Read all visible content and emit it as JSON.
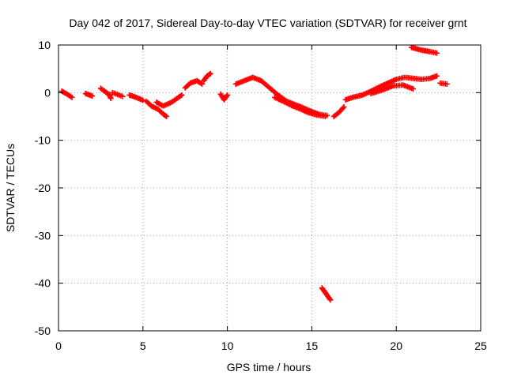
{
  "chart_data": {
    "type": "scatter",
    "title": "Day 042 of 2017, Sidereal Day-to-day VTEC variation (SDTVAR) for receiver grnt",
    "xlabel": "GPS time / hours",
    "ylabel": "SDTVAR / TECUs",
    "xlim": [
      0,
      25
    ],
    "ylim": [
      -50,
      10
    ],
    "xticks": [
      0,
      5,
      10,
      15,
      20,
      25
    ],
    "yticks": [
      -50,
      -40,
      -30,
      -20,
      -10,
      0,
      10
    ],
    "grid": true,
    "marker": "+",
    "color": "#ff0000",
    "series": [
      {
        "name": "SDTVAR",
        "segments": [
          [
            [
              0.2,
              0.3
            ],
            [
              0.5,
              -0.3
            ],
            [
              0.8,
              -1.0
            ]
          ],
          [
            [
              1.6,
              -0.2
            ],
            [
              2.0,
              -0.7
            ]
          ],
          [
            [
              2.5,
              0.9
            ],
            [
              2.8,
              0.1
            ],
            [
              3.0,
              -0.4
            ],
            [
              3.1,
              -1.2
            ]
          ],
          [
            [
              3.2,
              0.0
            ],
            [
              3.5,
              -0.4
            ],
            [
              3.8,
              -0.8
            ]
          ],
          [
            [
              4.2,
              -0.5
            ],
            [
              4.6,
              -1.0
            ],
            [
              5.0,
              -1.6
            ]
          ],
          [
            [
              5.2,
              -1.8
            ],
            [
              5.5,
              -2.8
            ],
            [
              5.9,
              -3.5
            ],
            [
              6.2,
              -4.5
            ],
            [
              6.4,
              -5.0
            ]
          ],
          [
            [
              5.8,
              -2.0
            ],
            [
              6.2,
              -2.8
            ],
            [
              6.7,
              -2.0
            ],
            [
              7.1,
              -1.0
            ],
            [
              7.3,
              -0.5
            ]
          ],
          [
            [
              7.5,
              1.0
            ],
            [
              7.8,
              2.0
            ],
            [
              8.2,
              2.5
            ],
            [
              8.5,
              1.8
            ]
          ],
          [
            [
              8.6,
              2.5
            ],
            [
              8.8,
              3.5
            ],
            [
              9.0,
              4.0
            ]
          ],
          [
            [
              9.6,
              -0.3
            ],
            [
              9.8,
              -1.5
            ],
            [
              10.0,
              -0.5
            ]
          ],
          [
            [
              10.5,
              1.8
            ],
            [
              11.0,
              2.5
            ],
            [
              11.5,
              3.2
            ],
            [
              12.0,
              2.5
            ],
            [
              12.5,
              1.0
            ],
            [
              13.0,
              -0.5
            ],
            [
              13.5,
              -1.8
            ],
            [
              14.0,
              -2.5
            ],
            [
              14.5,
              -3.2
            ],
            [
              15.0,
              -4.0
            ],
            [
              15.4,
              -4.5
            ],
            [
              15.9,
              -4.8
            ]
          ],
          [
            [
              12.8,
              -1.0
            ],
            [
              13.3,
              -1.8
            ],
            [
              13.8,
              -2.7
            ],
            [
              14.3,
              -3.4
            ],
            [
              14.8,
              -4.2
            ],
            [
              15.3,
              -4.7
            ],
            [
              15.8,
              -5.0
            ]
          ],
          [
            [
              15.6,
              -41.0
            ],
            [
              15.8,
              -42.0
            ],
            [
              15.9,
              -42.5
            ],
            [
              16.1,
              -43.5
            ]
          ],
          [
            [
              16.3,
              -5.0
            ],
            [
              16.6,
              -4.2
            ],
            [
              16.9,
              -3.0
            ]
          ],
          [
            [
              17.0,
              -1.5
            ],
            [
              17.4,
              -1.0
            ],
            [
              18.0,
              -0.5
            ],
            [
              18.5,
              0.3
            ],
            [
              19.0,
              1.2
            ],
            [
              19.5,
              2.0
            ],
            [
              20.0,
              2.8
            ],
            [
              20.5,
              3.2
            ],
            [
              21.0,
              3.0
            ],
            [
              21.5,
              2.8
            ],
            [
              22.0,
              3.0
            ],
            [
              22.4,
              3.5
            ]
          ],
          [
            [
              18.5,
              -0.2
            ],
            [
              19.2,
              0.6
            ],
            [
              19.8,
              1.4
            ],
            [
              20.4,
              1.6
            ],
            [
              21.0,
              0.8
            ]
          ],
          [
            [
              20.9,
              9.5
            ],
            [
              21.4,
              9.0
            ],
            [
              22.0,
              8.6
            ],
            [
              22.4,
              8.3
            ]
          ],
          [
            [
              22.6,
              2.0
            ],
            [
              23.0,
              1.8
            ]
          ]
        ]
      }
    ]
  }
}
